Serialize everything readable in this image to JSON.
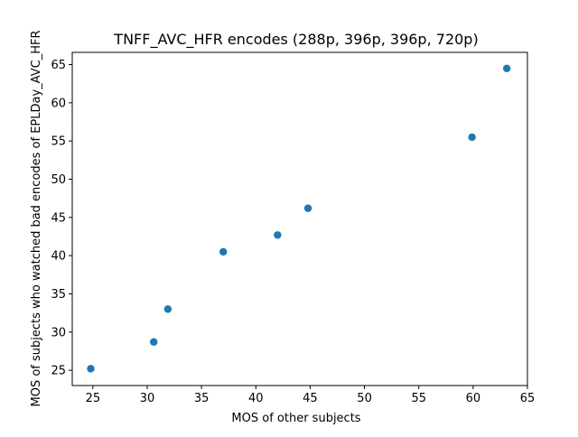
{
  "chart_data": {
    "type": "scatter",
    "title": "TNFF_AVC_HFR encodes (288p, 396p, 396p, 720p)",
    "xlabel": "MOS of other subjects",
    "ylabel": "MOS of subjects who watched bad encodes of EPLDay_AVC_HFR",
    "xlim": [
      23.1,
      65.0
    ],
    "ylim": [
      23.0,
      66.6
    ],
    "xticks": [
      25,
      30,
      35,
      40,
      45,
      50,
      55,
      60,
      65
    ],
    "yticks": [
      25,
      30,
      35,
      40,
      45,
      50,
      55,
      60,
      65
    ],
    "grid": false,
    "points": [
      {
        "x": 24.8,
        "y": 25.2
      },
      {
        "x": 30.6,
        "y": 28.7
      },
      {
        "x": 31.9,
        "y": 33.0
      },
      {
        "x": 37.0,
        "y": 40.5
      },
      {
        "x": 42.0,
        "y": 42.7
      },
      {
        "x": 44.8,
        "y": 46.2
      },
      {
        "x": 59.9,
        "y": 55.5
      },
      {
        "x": 63.1,
        "y": 64.5
      }
    ],
    "marker_color": "#1f77b4"
  }
}
